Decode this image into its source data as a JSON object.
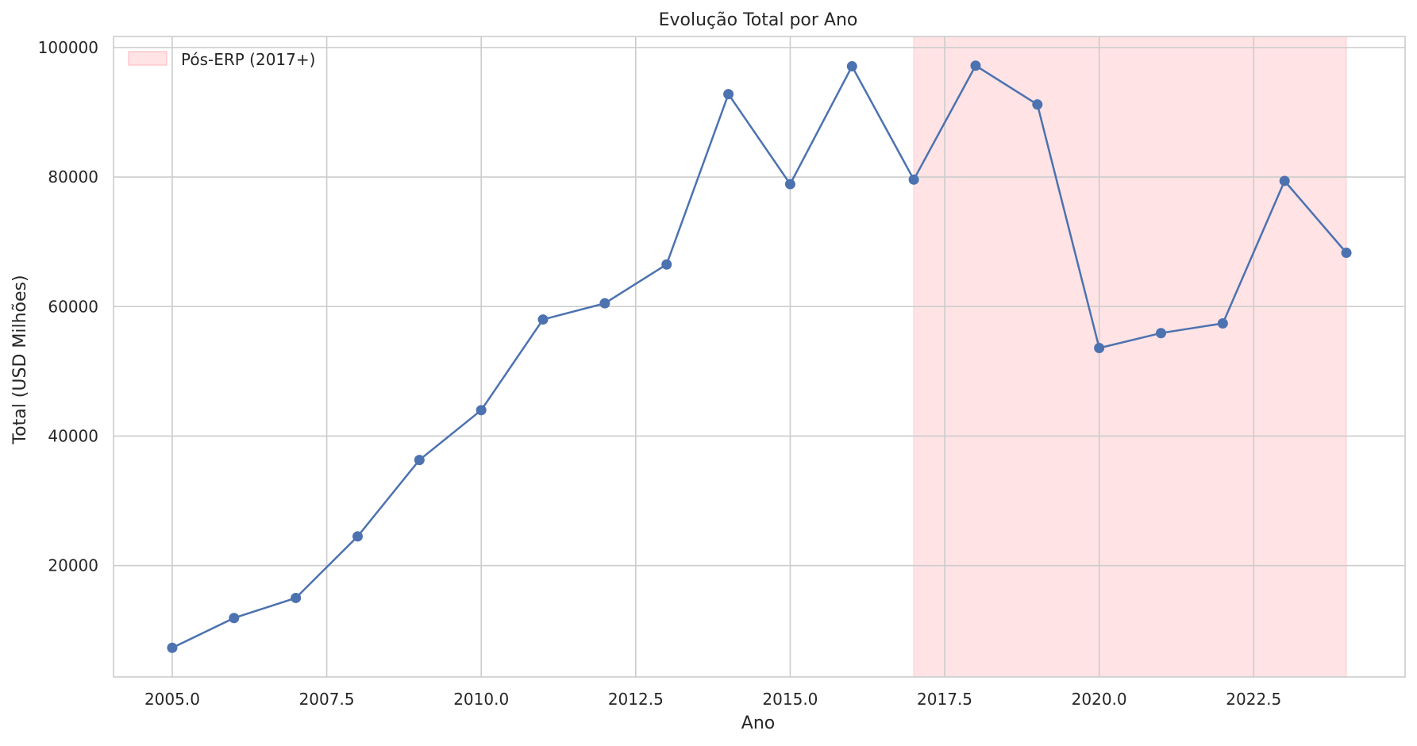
{
  "chart_data": {
    "type": "line",
    "title": "Evolução Total por Ano",
    "xlabel": "Ano",
    "ylabel": "Total (USD Milhões)",
    "x": [
      2005,
      2006,
      2007,
      2008,
      2009,
      2010,
      2011,
      2012,
      2013,
      2014,
      2015,
      2016,
      2017,
      2018,
      2019,
      2020,
      2021,
      2022,
      2023,
      2024
    ],
    "series": [
      {
        "values": [
          7300,
          11900,
          15000,
          24500,
          36300,
          44000,
          58000,
          60500,
          66500,
          92800,
          78900,
          97100,
          79600,
          97200,
          91200,
          53600,
          55900,
          57400,
          79400,
          68300
        ],
        "color": "#4c72b0"
      }
    ],
    "xlim": [
      2004.05,
      2024.95
    ],
    "ylim": [
      2800,
      101700
    ],
    "xticks": [
      2005.0,
      2007.5,
      2010.0,
      2012.5,
      2015.0,
      2017.5,
      2020.0,
      2022.5
    ],
    "xtick_labels": [
      "2005.0",
      "2007.5",
      "2010.0",
      "2012.5",
      "2015.0",
      "2017.5",
      "2020.0",
      "2022.5"
    ],
    "yticks": [
      20000,
      40000,
      60000,
      80000,
      100000
    ],
    "ytick_labels": [
      "20000",
      "40000",
      "60000",
      "80000",
      "100000"
    ],
    "grid": true,
    "shaded_region": {
      "x_start": 2017,
      "x_end": 2024,
      "label": "Pós-ERP (2017+)",
      "color": "#ffc0c5"
    },
    "legend": {
      "placement": "top-left",
      "entries": [
        "Pós-ERP (2017+)"
      ]
    }
  }
}
